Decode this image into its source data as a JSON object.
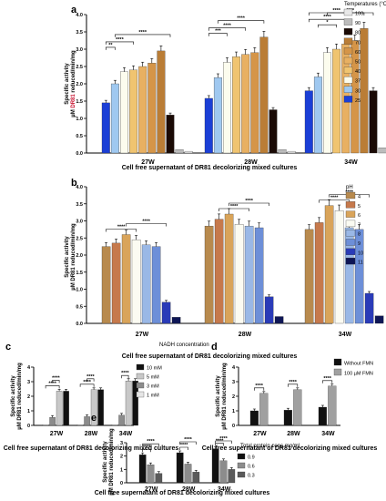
{
  "chart_data": [
    {
      "panel": "a",
      "type": "bar",
      "xlabel": "Cell free supernatant of DR81 decolorizing mixed cultures",
      "ylabel_parts": [
        "Specific activity",
        "µM ",
        "DR81",
        " reduced/min/mg"
      ],
      "ylim": [
        0,
        4
      ],
      "yticks": [
        "0.0",
        "0.5",
        "1.0",
        "1.5",
        "2.0",
        "2.5",
        "3.0",
        "3.5",
        "4.0"
      ],
      "categories": [
        "27W",
        "28W",
        "34W"
      ],
      "legend_title": "Temperatures (°C)",
      "series": [
        {
          "name": "25",
          "color": "#1b3fd6",
          "values": [
            1.45,
            1.58,
            1.8
          ]
        },
        {
          "name": "30",
          "color": "#9fc8f0",
          "values": [
            2.0,
            2.18,
            2.2
          ]
        },
        {
          "name": "37",
          "color": "#fcfcee",
          "values": [
            2.35,
            2.62,
            2.9
          ]
        },
        {
          "name": "40",
          "color": "#f0c470",
          "values": [
            2.4,
            2.78,
            3.0
          ]
        },
        {
          "name": "50",
          "color": "#e8b062",
          "values": [
            2.5,
            2.85,
            3.15
          ]
        },
        {
          "name": "60",
          "color": "#d59548",
          "values": [
            2.6,
            2.9,
            3.25
          ]
        },
        {
          "name": "70",
          "color": "#ba7d36",
          "values": [
            2.95,
            3.35,
            3.6
          ]
        },
        {
          "name": "80",
          "color": "#1a0a05",
          "values": [
            1.1,
            1.25,
            1.8
          ]
        },
        {
          "name": "90",
          "color": "#bcbcbc",
          "values": [
            0.1,
            0.1,
            0.15
          ]
        },
        {
          "name": "100",
          "color": "#e8e8e8",
          "values": [
            0.05,
            0.05,
            0.07
          ]
        }
      ],
      "significance": [
        {
          "group": 0,
          "from": 0,
          "to": 1,
          "label": "**"
        },
        {
          "group": 0,
          "from": 0,
          "to": 3,
          "label": "****"
        },
        {
          "group": 0,
          "from": 1,
          "to": 7,
          "label": "****"
        },
        {
          "group": 1,
          "from": 0,
          "to": 2,
          "label": "***"
        },
        {
          "group": 1,
          "from": 0,
          "to": 4,
          "label": "****"
        },
        {
          "group": 1,
          "from": 1,
          "to": 6,
          "label": "****"
        },
        {
          "group": 2,
          "from": 1,
          "to": 3,
          "label": "*"
        },
        {
          "group": 2,
          "from": 0,
          "to": 4,
          "label": "****"
        },
        {
          "group": 2,
          "from": 0,
          "to": 6,
          "label": "****"
        },
        {
          "group": 2,
          "from": 2,
          "to": 7,
          "label": "****"
        }
      ]
    },
    {
      "panel": "b",
      "type": "bar",
      "xlabel": "Cell free supernatant of DR81 decolorizing mixed cultures",
      "ylabel_parts": [
        "Specific activity",
        "µM DR81 reduced/min/mg"
      ],
      "ylim": [
        0,
        4
      ],
      "yticks": [
        "0.0",
        "0.5",
        "1.0",
        "1.5",
        "2.0",
        "2.5",
        "3.0",
        "3.5",
        "4.0"
      ],
      "categories": [
        "27W",
        "28W",
        "34W"
      ],
      "legend_title": "pH",
      "series": [
        {
          "name": "4",
          "color": "#b88a4e",
          "values": [
            2.25,
            2.85,
            2.75
          ]
        },
        {
          "name": "5",
          "color": "#c6794c",
          "values": [
            2.35,
            3.05,
            2.95
          ]
        },
        {
          "name": "6",
          "color": "#d9a45a",
          "values": [
            2.6,
            3.2,
            3.45
          ]
        },
        {
          "name": "7",
          "color": "#fbfbf2",
          "values": [
            2.45,
            2.9,
            3.3
          ]
        },
        {
          "name": "8",
          "color": "#9ab8e6",
          "values": [
            2.3,
            2.85,
            2.8
          ]
        },
        {
          "name": "9",
          "color": "#6d8fd8",
          "values": [
            2.25,
            2.8,
            2.75
          ]
        },
        {
          "name": "10",
          "color": "#2a3bb8",
          "values": [
            0.62,
            0.78,
            0.88
          ]
        },
        {
          "name": "11",
          "color": "#0e1656",
          "values": [
            0.18,
            0.2,
            0.22
          ]
        }
      ],
      "significance": [
        {
          "group": 0,
          "from": 0,
          "to": 3,
          "label": "****"
        },
        {
          "group": 0,
          "from": 2,
          "to": 6,
          "label": "****"
        },
        {
          "group": 1,
          "from": 1,
          "to": 4,
          "label": "****"
        },
        {
          "group": 1,
          "from": 2,
          "to": 6,
          "label": "****"
        },
        {
          "group": 2,
          "from": 1,
          "to": 4,
          "label": "****"
        },
        {
          "group": 2,
          "from": 2,
          "to": 6,
          "label": "****"
        }
      ]
    },
    {
      "panel": "c",
      "type": "bar",
      "xlabel": "Cell free supernatant of DR81 decolorizing mixed cultures",
      "ylabel_parts": [
        "Specific activity",
        "µM DR81 reduced/min/mg"
      ],
      "ylim": [
        0,
        4
      ],
      "yticks": [
        "0",
        "1",
        "2",
        "3",
        "4"
      ],
      "categories": [
        "27W",
        "28W",
        "34W"
      ],
      "legend_title": "NADH concentration",
      "series": [
        {
          "name": "1 mM",
          "color": "#e6e6e6",
          "values": [
            0.05,
            0.05,
            0.05
          ]
        },
        {
          "name": "3 mM",
          "color": "#8c8c8c",
          "values": [
            0.55,
            0.6,
            0.7
          ]
        },
        {
          "name": "5 mM",
          "color": "#c8c8c8",
          "values": [
            2.35,
            2.45,
            3.05
          ]
        },
        {
          "name": "10 mM",
          "color": "#111111",
          "values": [
            2.35,
            2.45,
            3.05
          ]
        }
      ],
      "significance": [
        {
          "group": 0,
          "from": 0,
          "to": 2,
          "label": "****"
        },
        {
          "group": 0,
          "from": 1,
          "to": 2,
          "label": "****"
        },
        {
          "group": 1,
          "from": 0,
          "to": 2,
          "label": "****"
        },
        {
          "group": 1,
          "from": 1,
          "to": 2,
          "label": "****"
        },
        {
          "group": 2,
          "from": 1,
          "to": 2,
          "label": "****"
        }
      ]
    },
    {
      "panel": "d",
      "type": "bar",
      "xlabel": "Cell free supernatant of DR81 decolorizing mixed cultures",
      "ylabel_parts": [
        "Specific activity",
        "µM DR81 reduced/min/mg"
      ],
      "ylim": [
        0,
        4
      ],
      "yticks": [
        "0",
        "1",
        "2",
        "3",
        "4"
      ],
      "categories": [
        "27W",
        "28W",
        "34W"
      ],
      "legend_title": "",
      "series": [
        {
          "name": "Without FMN",
          "color": "#111111",
          "values": [
            1.0,
            1.05,
            1.25
          ]
        },
        {
          "name": "100 µM FMN",
          "color": "#a0a0a0",
          "values": [
            2.2,
            2.45,
            2.7
          ]
        }
      ],
      "significance": [
        {
          "group": 0,
          "from": 0,
          "to": 1,
          "label": "****"
        },
        {
          "group": 1,
          "from": 0,
          "to": 1,
          "label": "****"
        },
        {
          "group": 2,
          "from": 0,
          "to": 1,
          "label": "****"
        }
      ]
    },
    {
      "panel": "e",
      "type": "bar",
      "xlabel": "Cell free supernatant of DR81 decolorizing mixed cultures",
      "ylabel_parts": [
        "Specific activity",
        "µM DR81 reduced/min/mg"
      ],
      "ylim": [
        0,
        3
      ],
      "yticks": [
        "0",
        "1",
        "2",
        "3"
      ],
      "categories": [
        "27W",
        "28W",
        "34W"
      ],
      "legend_title": "Total protein conc mg/ml",
      "series": [
        {
          "name": "0.9",
          "color": "#111111",
          "values": [
            2.1,
            2.25,
            2.55
          ]
        },
        {
          "name": "0.6",
          "color": "#8c8c8c",
          "values": [
            1.35,
            1.4,
            1.65
          ]
        },
        {
          "name": "0.3",
          "color": "#5a5a5a",
          "values": [
            0.7,
            0.8,
            1.0
          ]
        }
      ],
      "significance": [
        {
          "group": 0,
          "from": 0,
          "to": 1,
          "label": "****"
        },
        {
          "group": 0,
          "from": 0,
          "to": 2,
          "label": "****"
        },
        {
          "group": 1,
          "from": 0,
          "to": 1,
          "label": "****"
        },
        {
          "group": 1,
          "from": 0,
          "to": 2,
          "label": "****"
        },
        {
          "group": 2,
          "from": 0,
          "to": 1,
          "label": "****"
        },
        {
          "group": 2,
          "from": 0,
          "to": 2,
          "label": "****"
        }
      ]
    }
  ]
}
